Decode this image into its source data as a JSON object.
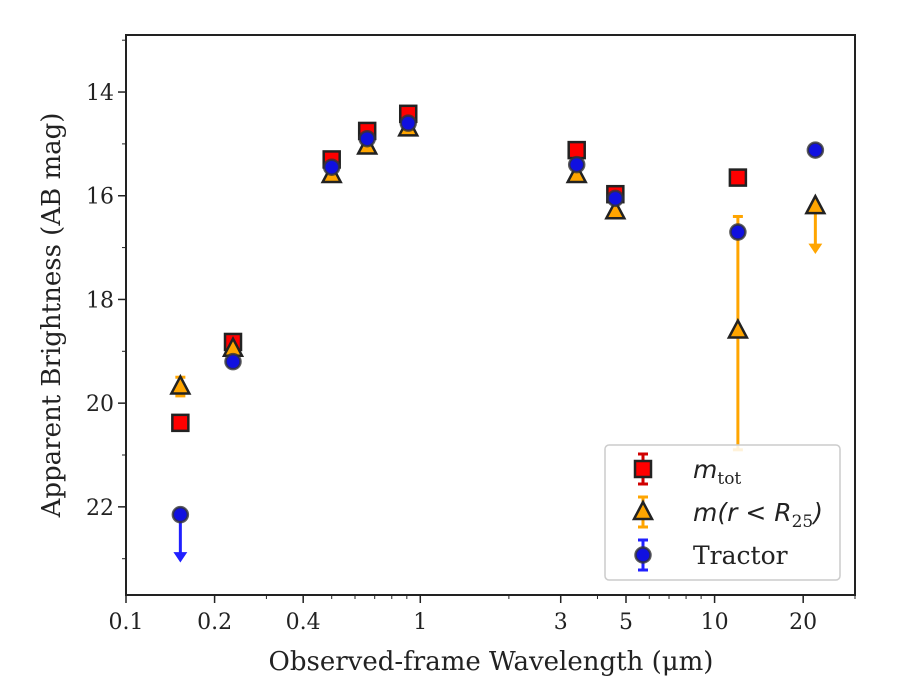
{
  "chart_data": {
    "type": "scatter",
    "xlabel": "Observed-frame Wavelength (μm)",
    "ylabel": "Apparent Brightness (AB mag)",
    "xscale": "log",
    "xlim": [
      0.1,
      30
    ],
    "ylim": [
      23.7,
      12.9
    ],
    "y_inverted": true,
    "xticks": [
      0.1,
      0.2,
      0.4,
      1,
      3,
      5,
      10,
      20
    ],
    "xtick_labels": [
      "0.1",
      "0.2",
      "0.4",
      "1",
      "3",
      "5",
      "10",
      "20"
    ],
    "yticks": [
      14,
      16,
      18,
      20,
      22
    ],
    "ytick_labels": [
      "14",
      "16",
      "18",
      "20",
      "22"
    ],
    "legend_position": "lower-right",
    "series": [
      {
        "name": "m_tot",
        "legend_main": "m",
        "legend_sub": "tot",
        "marker": "square",
        "color": "#ff0000",
        "edge": "#222222",
        "errcolor": "#d00000",
        "points": [
          {
            "x": 0.153,
            "y": 20.38
          },
          {
            "x": 0.231,
            "y": 18.82
          },
          {
            "x": 0.5,
            "y": 15.3
          },
          {
            "x": 0.66,
            "y": 14.75
          },
          {
            "x": 0.91,
            "y": 14.42
          },
          {
            "x": 3.4,
            "y": 15.12
          },
          {
            "x": 4.6,
            "y": 15.97
          },
          {
            "x": 12.0,
            "y": 15.65
          }
        ]
      },
      {
        "name": "m(r < R25)",
        "legend_main": "m(r < R",
        "legend_sub": "25",
        "legend_tail": ")",
        "marker": "triangle",
        "color": "#ffa500",
        "edge": "#222222",
        "errcolor": "#ffa500",
        "points": [
          {
            "x": 0.153,
            "y": 19.68,
            "err": 0.18
          },
          {
            "x": 0.231,
            "y": 18.95
          },
          {
            "x": 0.5,
            "y": 15.6
          },
          {
            "x": 0.66,
            "y": 15.05
          },
          {
            "x": 0.91,
            "y": 14.7
          },
          {
            "x": 3.4,
            "y": 15.6
          },
          {
            "x": 4.6,
            "y": 16.3
          },
          {
            "x": 12.0,
            "y": 18.6,
            "errlo": 16.4,
            "errhi": 20.9
          },
          {
            "x": 22.0,
            "y": 16.2,
            "upper_limit": true
          }
        ]
      },
      {
        "name": "Tractor",
        "legend_main": "Tractor",
        "marker": "circle",
        "color": "#1010e0",
        "edge": "#333333",
        "errcolor": "#2020ff",
        "points": [
          {
            "x": 0.153,
            "y": 22.15,
            "upper_limit": true
          },
          {
            "x": 0.231,
            "y": 19.2
          },
          {
            "x": 0.5,
            "y": 15.45
          },
          {
            "x": 0.66,
            "y": 14.9
          },
          {
            "x": 0.91,
            "y": 14.6
          },
          {
            "x": 3.4,
            "y": 15.4
          },
          {
            "x": 4.6,
            "y": 16.05
          },
          {
            "x": 12.0,
            "y": 16.7
          },
          {
            "x": 22.0,
            "y": 15.12
          }
        ]
      }
    ]
  }
}
